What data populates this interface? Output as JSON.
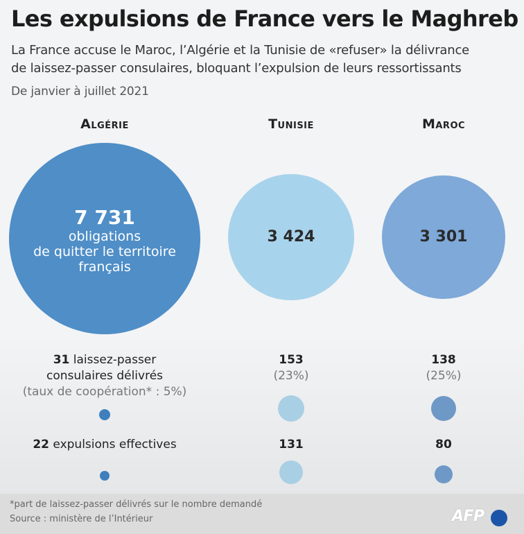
{
  "title": "Les expulsions de France vers le Maghreb",
  "subtitle_line1": "La France accuse le Maroc, l’Algérie et la Tunisie de «refuser» la délivrance",
  "subtitle_line2": "de laissez-passer consulaires, bloquant l’expulsion de leurs ressortissants",
  "period": "De janvier à juillet 2021",
  "colors": {
    "algeria": "#4f8ec7",
    "tunisia": "#a8d3ec",
    "morocco": "#7ea9d8",
    "small_algeria": "#3f7fbd",
    "small_tunisia": "#a9cfe4",
    "small_morocco": "#6e98c6"
  },
  "chart_data": {
    "type": "bubble",
    "categories": [
      "Algérie",
      "Tunisie",
      "Maroc"
    ],
    "series": [
      {
        "name": "obligations de quitter le territoire français",
        "values": [
          7731,
          3424,
          3301
        ]
      },
      {
        "name": "laissez-passer consulaires délivrés",
        "values": [
          31,
          153,
          138
        ],
        "rates": [
          "5%",
          "23%",
          "25%"
        ]
      },
      {
        "name": "expulsions effectives",
        "values": [
          22,
          131,
          80
        ]
      }
    ]
  },
  "labels": {
    "algeria_oqtf_value": "7 731",
    "algeria_oqtf_l1": "obligations",
    "algeria_oqtf_l2": "de quitter le territoire",
    "algeria_oqtf_l3": "français",
    "tunisia_oqtf_value": "3 424",
    "morocco_oqtf_value": "3 301",
    "algeria_lp_value": "31",
    "algeria_lp_l1": " laissez-passer",
    "algeria_lp_l2": "consulaires délivrés",
    "algeria_lp_l3": "(taux de coopération* : 5%)",
    "tunisia_lp_value": "153",
    "tunisia_lp_rate": "(23%)",
    "morocco_lp_value": "138",
    "morocco_lp_rate": "(25%)",
    "algeria_exp_value": "22",
    "algeria_exp_label": " expulsions effectives",
    "tunisia_exp_value": "131",
    "morocco_exp_value": "80"
  },
  "footnote": "*part de laissez-passer délivrés sur le nombre demandé",
  "source": "Source : ministère de l’Intérieur",
  "logo": "AFP"
}
